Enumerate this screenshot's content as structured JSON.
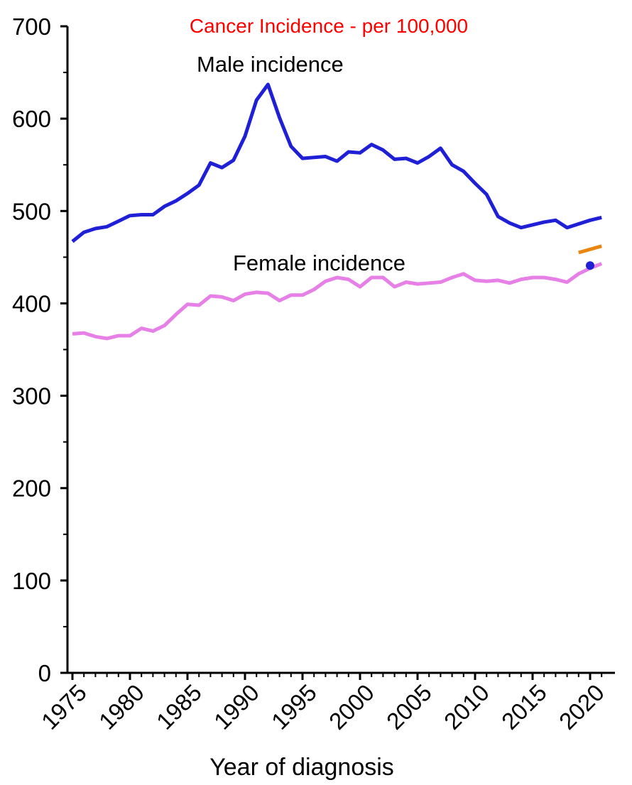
{
  "chart_data": {
    "type": "line",
    "title": "Cancer Incidence - per 100,000",
    "title_color": "#ff0000",
    "xlabel": "Year of diagnosis",
    "ylabel": "",
    "xlim": [
      1975,
      2021
    ],
    "ylim": [
      0,
      700
    ],
    "yticks": [
      "0",
      "100",
      "200",
      "300",
      "400",
      "500",
      "600",
      "700"
    ],
    "xticks": [
      "1975",
      "1980",
      "1985",
      "1990",
      "1995",
      "2000",
      "2005",
      "2010",
      "2015",
      "2020"
    ],
    "grid": false,
    "x": [
      1975,
      1976,
      1977,
      1978,
      1979,
      1980,
      1981,
      1982,
      1983,
      1984,
      1985,
      1986,
      1987,
      1988,
      1989,
      1990,
      1991,
      1992,
      1993,
      1994,
      1995,
      1996,
      1997,
      1998,
      1999,
      2000,
      2001,
      2002,
      2003,
      2004,
      2005,
      2006,
      2007,
      2008,
      2009,
      2010,
      2011,
      2012,
      2013,
      2014,
      2015,
      2016,
      2017,
      2018,
      2019,
      2020,
      2021
    ],
    "series": [
      {
        "name": "Male incidence",
        "color": "#1f1fd6",
        "values": [
          467,
          477,
          481,
          483,
          489,
          495,
          496,
          496,
          505,
          511,
          519,
          528,
          552,
          547,
          555,
          581,
          620,
          637,
          601,
          570,
          557,
          558,
          559,
          554,
          564,
          563,
          572,
          566,
          556,
          557,
          552,
          559,
          568,
          550,
          543,
          530,
          518,
          494,
          487,
          482,
          485,
          488,
          490,
          482,
          486,
          490,
          493
        ]
      },
      {
        "name": "Female incidence",
        "color": "#e67fe6",
        "values": [
          367,
          368,
          364,
          362,
          365,
          365,
          373,
          370,
          376,
          388,
          399,
          398,
          408,
          407,
          403,
          410,
          412,
          411,
          403,
          409,
          409,
          415,
          424,
          428,
          426,
          418,
          428,
          428,
          418,
          423,
          421,
          422,
          423,
          428,
          432,
          425,
          424,
          425,
          422,
          426,
          428,
          428,
          426,
          423,
          432,
          438,
          443
        ]
      }
    ],
    "extra_marks": [
      {
        "type": "segment",
        "color": "#e8860f",
        "x": [
          2019,
          2021
        ],
        "y": [
          455,
          462
        ]
      },
      {
        "type": "point",
        "color": "#1f1fd6",
        "x": 2020,
        "y": 441
      }
    ],
    "annotations": [
      "Male incidence",
      "Female incidence"
    ]
  }
}
